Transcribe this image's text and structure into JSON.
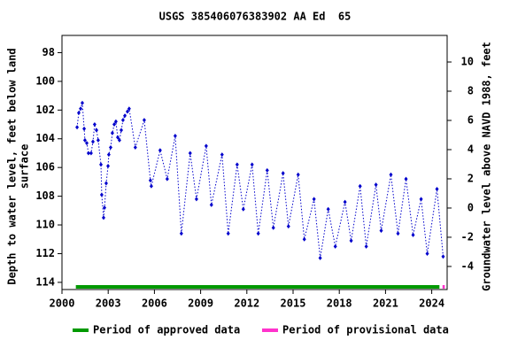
{
  "chart_data": {
    "type": "line",
    "title": "USGS 385406076383902 AA Ed  65",
    "y_label": [
      "Depth to water level, feet below land",
      "surface"
    ],
    "y2_label": "Groundwater level above NAVD 1988, feet",
    "x": [
      2000.98,
      2001.09,
      2001.21,
      2001.32,
      2001.44,
      2001.49,
      2001.61,
      2001.72,
      2001.89,
      2002.01,
      2002.12,
      2002.24,
      2002.35,
      2002.53,
      2002.58,
      2002.7,
      2002.76,
      2002.87,
      2002.99,
      2003.04,
      2003.16,
      2003.27,
      2003.39,
      2003.5,
      2003.62,
      2003.73,
      2003.85,
      2003.96,
      2004.08,
      2004.25,
      2004.36,
      2004.76,
      2005.34,
      2005.74,
      2005.8,
      2006.37,
      2006.83,
      2007.35,
      2007.75,
      2008.32,
      2008.73,
      2009.36,
      2009.7,
      2010.39,
      2010.79,
      2011.37,
      2011.77,
      2012.34,
      2012.74,
      2013.32,
      2013.72,
      2014.35,
      2014.7,
      2015.33,
      2015.73,
      2016.36,
      2016.76,
      2017.28,
      2017.74,
      2018.37,
      2018.77,
      2019.35,
      2019.75,
      2020.38,
      2020.72,
      2021.35,
      2021.81,
      2022.33,
      2022.79,
      2023.31,
      2023.71,
      2024.34,
      2024.74
    ],
    "series": [
      {
        "color": "#0000cc",
        "values": [
          103.2,
          102.2,
          101.9,
          101.5,
          103.3,
          104.1,
          104.3,
          105.0,
          105.0,
          104.2,
          103.0,
          103.4,
          104.1,
          105.8,
          107.9,
          109.5,
          108.8,
          107.1,
          105.9,
          105.1,
          104.6,
          103.6,
          103.0,
          102.8,
          103.9,
          104.1,
          103.4,
          102.7,
          102.4,
          102.1,
          101.9,
          104.6,
          102.7,
          106.9,
          107.3,
          104.8,
          106.8,
          103.8,
          110.6,
          105.0,
          108.2,
          104.5,
          108.6,
          105.1,
          110.6,
          105.8,
          108.9,
          105.8,
          110.6,
          106.2,
          110.2,
          106.4,
          110.1,
          106.5,
          111.0,
          108.2,
          112.3,
          108.9,
          111.5,
          108.4,
          111.1,
          107.3,
          111.5,
          107.2,
          110.4,
          106.5,
          110.6,
          106.8,
          110.7,
          108.2,
          112.0,
          107.5,
          112.2
        ]
      }
    ],
    "periods": [
      {
        "name": "Period of approved data",
        "color": "#009900",
        "range": [
          2000.9,
          2024.5
        ]
      },
      {
        "name": "Period of provisional data",
        "color": "#ff33cc",
        "range": [
          2024.7,
          2024.85
        ]
      }
    ],
    "xlim": [
      2000,
      2025
    ],
    "xticks": [
      2000,
      2003,
      2006,
      2009,
      2012,
      2015,
      2018,
      2021,
      2024
    ],
    "ylim": [
      114.5,
      96.8
    ],
    "yticks": [
      98,
      100,
      102,
      104,
      106,
      108,
      110,
      112,
      114
    ],
    "y2lim": [
      -5.58,
      11.82
    ],
    "y2ticks": [
      -4,
      -2,
      0,
      2,
      4,
      6,
      8,
      10
    ]
  }
}
